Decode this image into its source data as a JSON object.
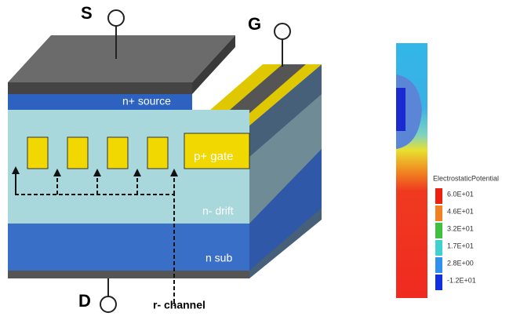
{
  "labels": {
    "source_terminal": "S",
    "gate_terminal": "G",
    "drain_terminal": "D"
  },
  "layers": {
    "source": "n+ source",
    "gate": "p+ gate",
    "drift": "n- drift",
    "substrate": "n sub",
    "channel": "r- channel"
  },
  "legend": {
    "title": "ElectrostaticPotential",
    "entries": [
      "6.0E+01",
      "4.6E+01",
      "3.2E+01",
      "1.7E+01",
      "2.8E+00",
      "-1.2E+01"
    ]
  }
}
